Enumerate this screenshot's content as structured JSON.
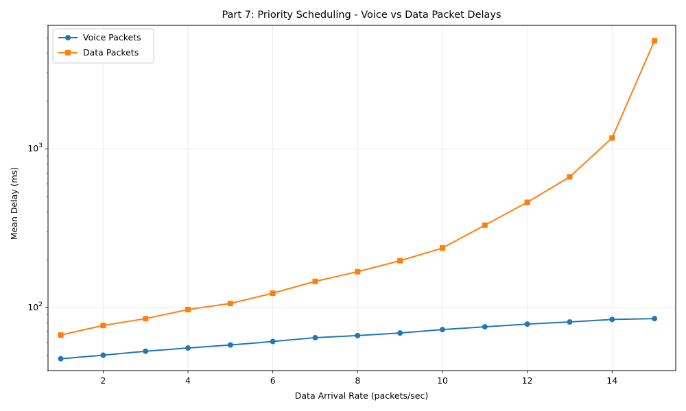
{
  "chart_data": {
    "type": "line",
    "title": "Part 7: Priority Scheduling - Voice vs Data Packet Delays",
    "xlabel": "Data Arrival Rate (packets/sec)",
    "ylabel": "Mean Delay (ms)",
    "x": [
      1,
      2,
      3,
      4,
      5,
      6,
      7,
      8,
      9,
      10,
      11,
      12,
      13,
      14,
      15
    ],
    "xlim": [
      0.7,
      15.5
    ],
    "ylim": [
      40,
      6000
    ],
    "yscale": "log",
    "xticks": [
      2,
      4,
      6,
      8,
      10,
      12,
      14
    ],
    "yticks": [
      {
        "value": 100,
        "base": "10",
        "exp": "2"
      },
      {
        "value": 1000,
        "base": "10",
        "exp": "3"
      }
    ],
    "grid": true,
    "legend_position": "top-left",
    "series": [
      {
        "name": "Voice Packets",
        "color": "#1f77b4",
        "marker": "circle",
        "values": [
          47.5,
          50,
          53,
          55.5,
          58,
          61,
          64.5,
          66.5,
          69,
          72.5,
          75.5,
          78.5,
          81,
          84,
          85
        ]
      },
      {
        "name": "Data Packets",
        "color": "#ff7f0e",
        "marker": "square",
        "values": [
          67,
          77,
          85,
          97,
          106,
          123,
          146,
          168,
          197,
          237,
          330,
          460,
          665,
          1170,
          4800
        ]
      }
    ]
  }
}
